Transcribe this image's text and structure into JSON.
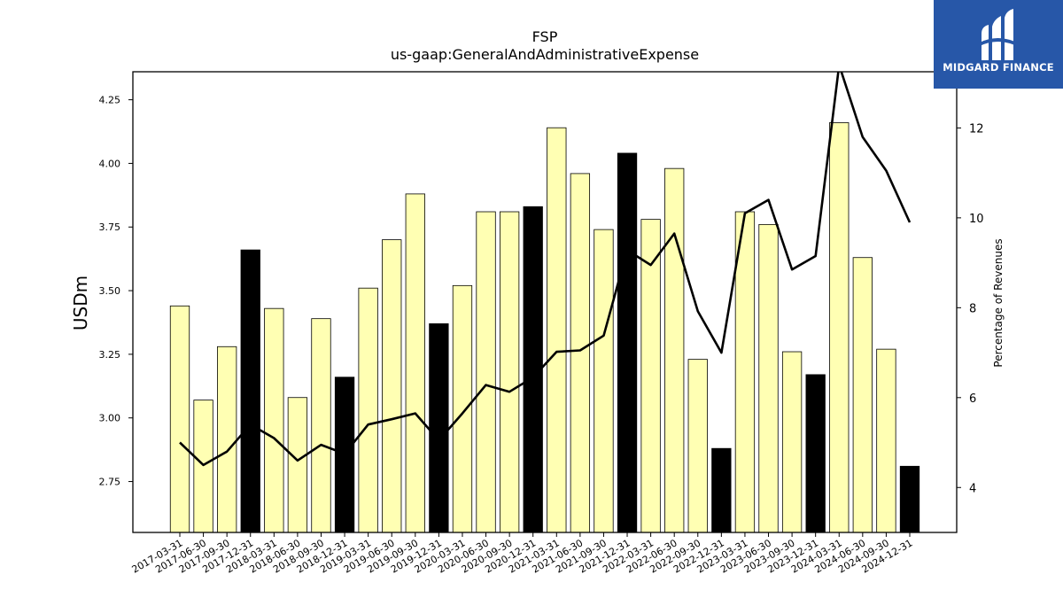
{
  "chart_data": {
    "type": "bar",
    "title": "FSP",
    "subtitle": "us-gaap:GeneralAndAdministrativeExpense",
    "ylabel": "USDm",
    "y2label": "Percentage of Revenues",
    "ylim": [
      2.55,
      4.36
    ],
    "y2lim": [
      3.0,
      13.25
    ],
    "yticks": [
      "2.75",
      "3.00",
      "3.25",
      "3.50",
      "3.75",
      "4.00",
      "4.25"
    ],
    "y2ticks": [
      "4",
      "6",
      "8",
      "10",
      "12"
    ],
    "categories": [
      "2017-03-31",
      "2017-06-30",
      "2017-09-30",
      "2017-12-31",
      "2018-03-31",
      "2018-06-30",
      "2018-09-30",
      "2018-12-31",
      "2019-03-31",
      "2019-06-30",
      "2019-09-30",
      "2019-12-31",
      "2020-03-31",
      "2020-06-30",
      "2020-09-30",
      "2020-12-31",
      "2021-03-31",
      "2021-06-30",
      "2021-09-30",
      "2021-12-31",
      "2022-03-31",
      "2022-06-30",
      "2022-09-30",
      "2022-12-31",
      "2023-03-31",
      "2023-06-30",
      "2023-09-30",
      "2023-12-31",
      "2024-03-31",
      "2024-06-30",
      "2024-09-30",
      "2024-12-31"
    ],
    "series": [
      {
        "type": "bar",
        "values": [
          3.44,
          3.07,
          3.28,
          3.66,
          3.43,
          3.08,
          3.39,
          3.16,
          3.51,
          3.7,
          3.88,
          3.37,
          3.52,
          3.81,
          3.81,
          3.83,
          4.14,
          3.96,
          3.74,
          4.04,
          3.78,
          3.98,
          3.23,
          2.88,
          3.81,
          3.76,
          3.26,
          3.17,
          4.16,
          3.63,
          3.27,
          2.81
        ],
        "colors": [
          "#ffffb3",
          "#ffffb3",
          "#ffffb3",
          "#000000",
          "#ffffb3",
          "#ffffb3",
          "#ffffb3",
          "#000000",
          "#ffffb3",
          "#ffffb3",
          "#ffffb3",
          "#000000",
          "#ffffb3",
          "#ffffb3",
          "#ffffb3",
          "#000000",
          "#ffffb3",
          "#ffffb3",
          "#ffffb3",
          "#000000",
          "#ffffb3",
          "#ffffb3",
          "#ffffb3",
          "#000000",
          "#ffffb3",
          "#ffffb3",
          "#ffffb3",
          "#000000",
          "#ffffb3",
          "#ffffb3",
          "#ffffb3",
          "#000000"
        ]
      },
      {
        "type": "line",
        "axis": "right",
        "color": "#000000",
        "values": [
          5.0,
          4.5,
          4.8,
          5.4,
          5.1,
          4.6,
          4.95,
          4.75,
          5.4,
          5.52,
          5.65,
          5.05,
          5.65,
          6.28,
          6.13,
          6.45,
          7.02,
          7.05,
          7.38,
          9.28,
          8.95,
          9.65,
          7.92,
          7.0,
          10.1,
          10.4,
          8.85,
          9.15,
          13.4,
          11.8,
          11.05,
          9.9
        ]
      }
    ],
    "grid": false
  },
  "logo": {
    "text": "MIDGARD FINANCE"
  }
}
